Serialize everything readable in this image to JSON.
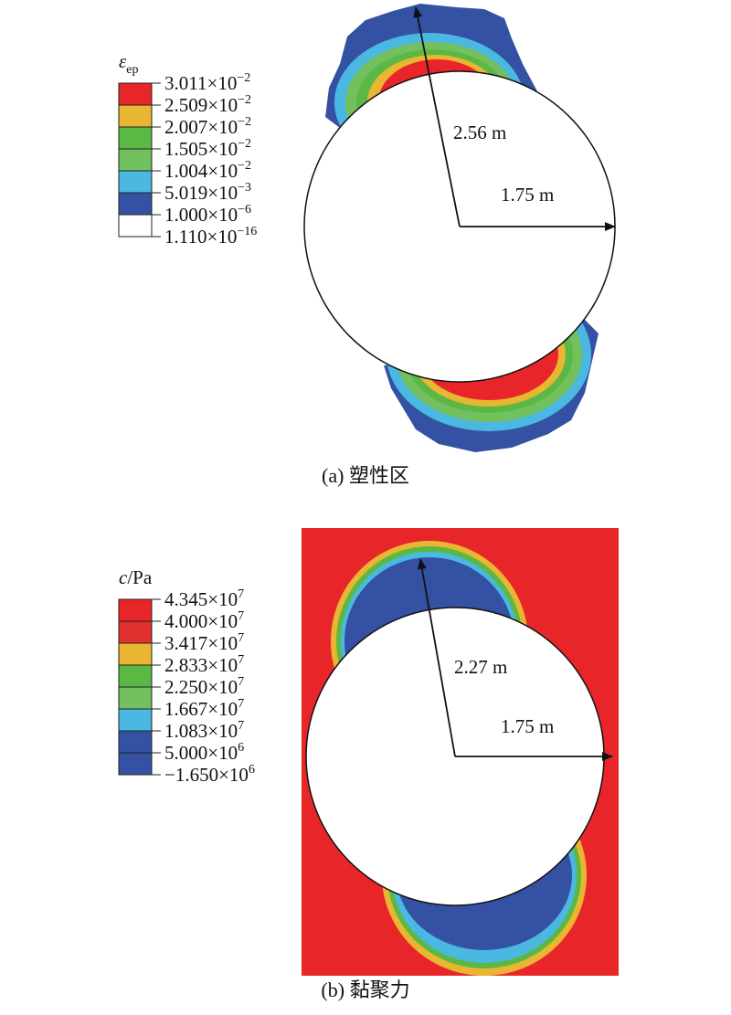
{
  "panels": [
    {
      "caption": "(a) 塑性区",
      "legend": {
        "symbol": "ε",
        "subscript": "ep",
        "levels": [
          {
            "mantissa": "3.011×10",
            "exponent": "−2"
          },
          {
            "mantissa": "2.509×10",
            "exponent": "−2"
          },
          {
            "mantissa": "2.007×10",
            "exponent": "−2"
          },
          {
            "mantissa": "1.505×10",
            "exponent": "−2"
          },
          {
            "mantissa": "1.004×10",
            "exponent": "−2"
          },
          {
            "mantissa": "5.019×10",
            "exponent": "−3"
          },
          {
            "mantissa": "1.000×10",
            "exponent": "−6"
          },
          {
            "mantissa": "1.110×10",
            "exponent": "−16"
          }
        ],
        "colors": [
          "#e8262a",
          "#e9b632",
          "#5cb845",
          "#72c05e",
          "#4ab8e0",
          "#3451a3",
          "#ffffff"
        ]
      },
      "radius_label": "2.56 m",
      "circle_label": "1.75 m"
    },
    {
      "caption": "(b) 黏聚力",
      "legend": {
        "symbol": "c",
        "suffix": "/Pa",
        "levels": [
          {
            "mantissa": "4.345×10",
            "exponent": "7"
          },
          {
            "mantissa": "4.000×10",
            "exponent": "7"
          },
          {
            "mantissa": "3.417×10",
            "exponent": "7"
          },
          {
            "mantissa": "2.833×10",
            "exponent": "7"
          },
          {
            "mantissa": "2.250×10",
            "exponent": "7"
          },
          {
            "mantissa": "1.667×10",
            "exponent": "7"
          },
          {
            "mantissa": "1.083×10",
            "exponent": "7"
          },
          {
            "mantissa": "5.000×10",
            "exponent": "6"
          },
          {
            "mantissa": "−1.650×10",
            "exponent": "6"
          }
        ],
        "colors": [
          "#e8262a",
          "#e03030",
          "#e9b632",
          "#5cb845",
          "#72c05e",
          "#4ab8e0",
          "#3451a3",
          "#3451a3"
        ]
      },
      "radius_label": "2.27 m",
      "circle_label": "1.75 m"
    }
  ]
}
